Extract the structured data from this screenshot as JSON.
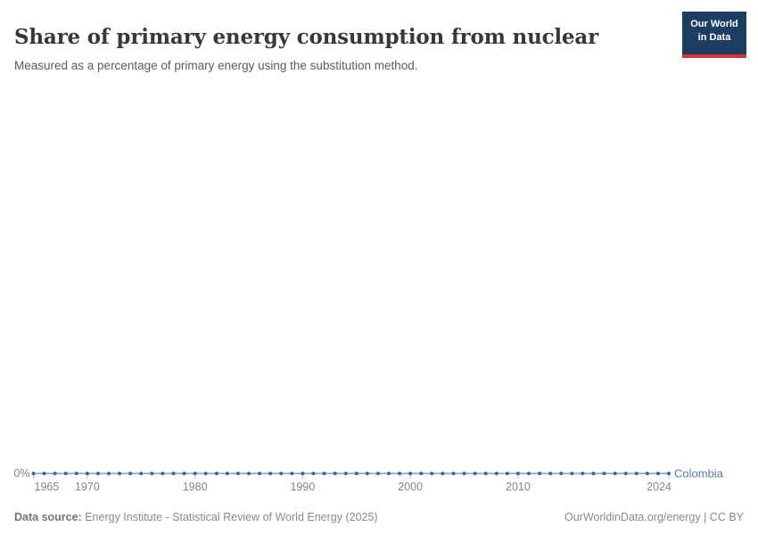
{
  "header": {
    "title": "Share of primary energy consumption from nuclear",
    "subtitle": "Measured as a percentage of primary energy using the substitution method."
  },
  "logo": {
    "line1": "Our World",
    "line2": "in Data",
    "bg_color": "#1d3d63",
    "accent_color": "#d8323c"
  },
  "footer": {
    "source_label": "Data source:",
    "source_text": " Energy Institute - Statistical Review of World Energy (2025)",
    "license_text": "OurWorldinData.org/energy | CC BY"
  },
  "chart_data": {
    "type": "line",
    "title": "Share of primary energy consumption from nuclear",
    "xlabel": "",
    "ylabel": "",
    "y_tick_label": "0%",
    "ylim": [
      0,
      0
    ],
    "x_tick_years": [
      1965,
      1970,
      1980,
      1990,
      2000,
      2010,
      2024
    ],
    "grid": false,
    "legend_position": "right-of-line-end",
    "axis": {
      "tick_color": "#c0c0c0",
      "label_color": "#858585"
    },
    "x": [
      1965,
      1966,
      1967,
      1968,
      1969,
      1970,
      1971,
      1972,
      1973,
      1974,
      1975,
      1976,
      1977,
      1978,
      1979,
      1980,
      1981,
      1982,
      1983,
      1984,
      1985,
      1986,
      1987,
      1988,
      1989,
      1990,
      1991,
      1992,
      1993,
      1994,
      1995,
      1996,
      1997,
      1998,
      1999,
      2000,
      2001,
      2002,
      2003,
      2004,
      2005,
      2006,
      2007,
      2008,
      2009,
      2010,
      2011,
      2012,
      2013,
      2014,
      2015,
      2016,
      2017,
      2018,
      2019,
      2020,
      2021,
      2022,
      2023,
      2024
    ],
    "series": [
      {
        "name": "Colombia",
        "color": "#3d64a8",
        "line_color": "#7f9bc7",
        "label_color": "#5b7cb0",
        "values": [
          0,
          0,
          0,
          0,
          0,
          0,
          0,
          0,
          0,
          0,
          0,
          0,
          0,
          0,
          0,
          0,
          0,
          0,
          0,
          0,
          0,
          0,
          0,
          0,
          0,
          0,
          0,
          0,
          0,
          0,
          0,
          0,
          0,
          0,
          0,
          0,
          0,
          0,
          0,
          0,
          0,
          0,
          0,
          0,
          0,
          0,
          0,
          0,
          0,
          0,
          0,
          0,
          0,
          0,
          0,
          0,
          0,
          0,
          0,
          0
        ]
      }
    ]
  }
}
